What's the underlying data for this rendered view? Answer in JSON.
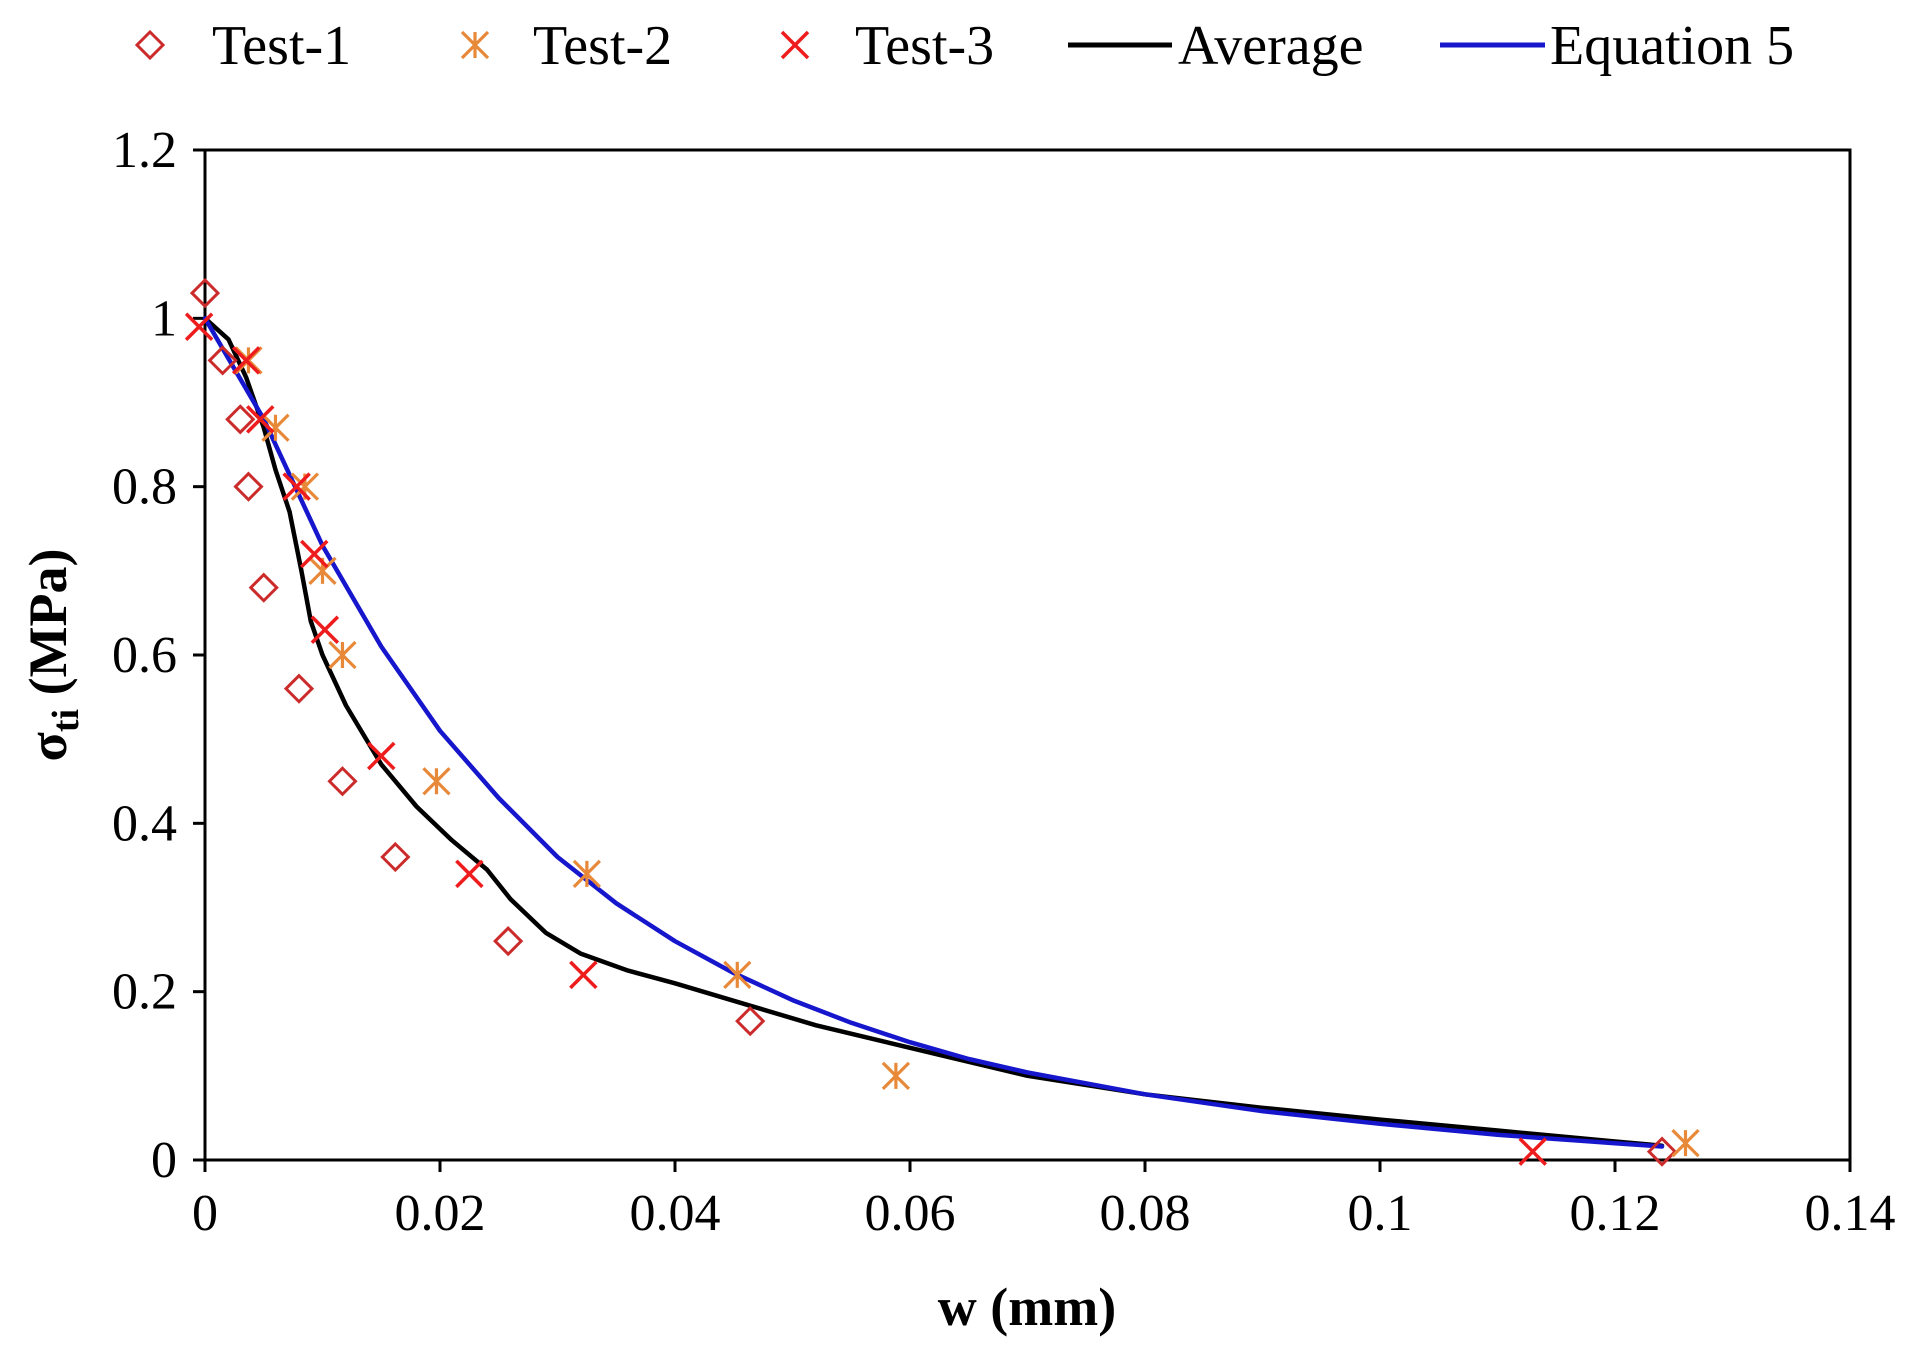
{
  "chart_data": {
    "type": "scatter",
    "title": "",
    "xlabel": "w (mm)",
    "ylabel": {
      "main": "σ",
      "sub": "ti",
      "unit": " (MPa)"
    },
    "xlim": [
      0,
      0.14
    ],
    "ylim": [
      0,
      1.2
    ],
    "x_ticks": [
      0,
      0.02,
      0.04,
      0.06,
      0.08,
      0.1,
      0.12,
      0.14
    ],
    "x_tick_labels": [
      "0",
      "0.02",
      "0.04",
      "0.06",
      "0.08",
      "0.1",
      "0.12",
      "0.14"
    ],
    "y_ticks": [
      0,
      0.2,
      0.4,
      0.6,
      0.8,
      1,
      1.2
    ],
    "y_tick_labels": [
      "0",
      "0.2",
      "0.4",
      "0.6",
      "0.8",
      "1",
      "1.2"
    ],
    "grid": false,
    "legend_position": "top",
    "series": [
      {
        "name": "Test-1",
        "kind": "markers",
        "marker": "diamond",
        "color": "#cc2b2b",
        "points": [
          [
            0,
            1.03
          ],
          [
            0.0015,
            0.95
          ],
          [
            0.003,
            0.88
          ],
          [
            0.0037,
            0.8
          ],
          [
            0.005,
            0.68
          ],
          [
            0.008,
            0.56
          ],
          [
            0.0117,
            0.45
          ],
          [
            0.0162,
            0.36
          ],
          [
            0.0258,
            0.26
          ],
          [
            0.0464,
            0.165
          ],
          [
            0.124,
            0.01
          ]
        ]
      },
      {
        "name": "Test-2",
        "kind": "markers",
        "marker": "asterisk",
        "color": "#e8893a",
        "points": [
          [
            0.0037,
            0.95
          ],
          [
            0.006,
            0.87
          ],
          [
            0.0085,
            0.8
          ],
          [
            0.01,
            0.7
          ],
          [
            0.0117,
            0.6
          ],
          [
            0.0197,
            0.45
          ],
          [
            0.0325,
            0.34
          ],
          [
            0.0453,
            0.22
          ],
          [
            0.0588,
            0.1
          ],
          [
            0.126,
            0.02
          ]
        ]
      },
      {
        "name": "Test-3",
        "kind": "markers",
        "marker": "cross",
        "color": "#ee1c1c",
        "points": [
          [
            -0.0005,
            0.99
          ],
          [
            0.0035,
            0.95
          ],
          [
            0.0047,
            0.88
          ],
          [
            0.0078,
            0.8
          ],
          [
            0.0093,
            0.72
          ],
          [
            0.0102,
            0.63
          ],
          [
            0.015,
            0.48
          ],
          [
            0.0225,
            0.34
          ],
          [
            0.0322,
            0.22
          ],
          [
            0.113,
            0.01
          ]
        ]
      },
      {
        "name": "Average",
        "kind": "line",
        "color": "#000000",
        "points": [
          [
            0,
            1.0
          ],
          [
            0.002,
            0.975
          ],
          [
            0.0035,
            0.93
          ],
          [
            0.005,
            0.87
          ],
          [
            0.006,
            0.82
          ],
          [
            0.0072,
            0.77
          ],
          [
            0.0082,
            0.7
          ],
          [
            0.009,
            0.64
          ],
          [
            0.01,
            0.6
          ],
          [
            0.012,
            0.54
          ],
          [
            0.015,
            0.47
          ],
          [
            0.018,
            0.42
          ],
          [
            0.021,
            0.38
          ],
          [
            0.024,
            0.345
          ],
          [
            0.026,
            0.31
          ],
          [
            0.029,
            0.27
          ],
          [
            0.032,
            0.245
          ],
          [
            0.036,
            0.225
          ],
          [
            0.04,
            0.21
          ],
          [
            0.046,
            0.185
          ],
          [
            0.052,
            0.16
          ],
          [
            0.058,
            0.14
          ],
          [
            0.064,
            0.12
          ],
          [
            0.07,
            0.1
          ],
          [
            0.08,
            0.078
          ],
          [
            0.09,
            0.062
          ],
          [
            0.1,
            0.048
          ],
          [
            0.11,
            0.035
          ],
          [
            0.12,
            0.022
          ],
          [
            0.124,
            0.017
          ]
        ]
      },
      {
        "name": "Equation 5",
        "kind": "line",
        "color": "#1616cc",
        "points": [
          [
            0,
            1.0
          ],
          [
            0.005,
            0.88
          ],
          [
            0.01,
            0.73
          ],
          [
            0.015,
            0.61
          ],
          [
            0.02,
            0.51
          ],
          [
            0.025,
            0.43
          ],
          [
            0.03,
            0.36
          ],
          [
            0.035,
            0.305
          ],
          [
            0.04,
            0.26
          ],
          [
            0.045,
            0.222
          ],
          [
            0.05,
            0.19
          ],
          [
            0.055,
            0.163
          ],
          [
            0.06,
            0.14
          ],
          [
            0.065,
            0.12
          ],
          [
            0.07,
            0.104
          ],
          [
            0.08,
            0.078
          ],
          [
            0.09,
            0.058
          ],
          [
            0.1,
            0.043
          ],
          [
            0.11,
            0.03
          ],
          [
            0.12,
            0.02
          ],
          [
            0.124,
            0.016
          ]
        ]
      }
    ]
  }
}
